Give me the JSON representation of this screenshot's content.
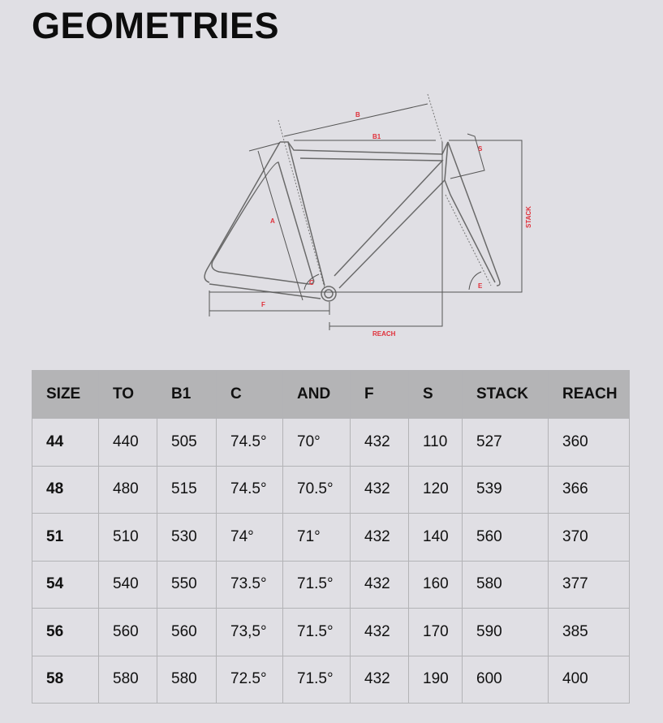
{
  "page_title": "GEOMETRIES",
  "diagram_labels": {
    "B": "B",
    "B1": "B1",
    "S": "S",
    "STACK": "STACK",
    "A": "A",
    "C": "C",
    "E": "E",
    "F": "F",
    "REACH": "REACH"
  },
  "accent_color": "#e0303a",
  "table": {
    "headers": [
      "SIZE",
      "TO",
      "B1",
      "C",
      "AND",
      "F",
      "S",
      "STACK",
      "REACH"
    ],
    "rows": [
      [
        "44",
        "440",
        "505",
        "74.5°",
        "70°",
        "432",
        "110",
        "527",
        "360"
      ],
      [
        "48",
        "480",
        "515",
        "74.5°",
        "70.5°",
        "432",
        "120",
        "539",
        "366"
      ],
      [
        "51",
        "510",
        "530",
        "74°",
        "71°",
        "432",
        "140",
        "560",
        "370"
      ],
      [
        "54",
        "540",
        "550",
        "73.5°",
        "71.5°",
        "432",
        "160",
        "580",
        "377"
      ],
      [
        "56",
        "560",
        "560",
        "73,5°",
        "71.5°",
        "432",
        "170",
        "590",
        "385"
      ],
      [
        "58",
        "580",
        "580",
        "72.5°",
        "71.5°",
        "432",
        "190",
        "600",
        "400"
      ]
    ]
  }
}
